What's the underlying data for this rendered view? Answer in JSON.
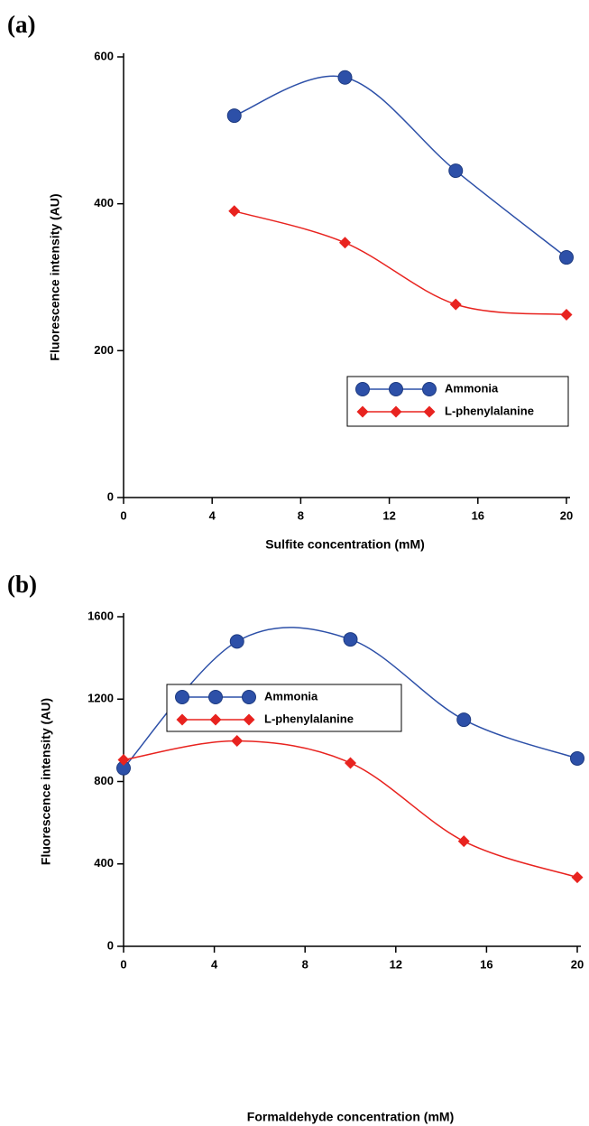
{
  "chart_data": [
    {
      "type": "line",
      "panel_label": "(a)",
      "xlabel": "Sulfite concentration (mM)",
      "ylabel": "Fluorescence intensity (AU)",
      "x": [
        5,
        10,
        15,
        20
      ],
      "series": [
        {
          "name": "Ammonia",
          "color": "#2d50a8",
          "marker": "circle",
          "values": [
            520,
            572,
            445,
            327
          ]
        },
        {
          "name": "L-phenylalanine",
          "color": "#e8231f",
          "marker": "diamond",
          "values": [
            390,
            347,
            263,
            249
          ]
        }
      ],
      "xlim": [
        0,
        20
      ],
      "xticks": [
        0,
        4,
        8,
        12,
        16,
        20
      ],
      "ylim": [
        0,
        600
      ],
      "yticks": [
        0,
        200,
        400,
        600
      ],
      "legend_loc": "lower right"
    },
    {
      "type": "line",
      "panel_label": "(b)",
      "xlabel": "Formaldehyde concentration (mM)",
      "ylabel": "Fluorescence intensity (AU)",
      "x": [
        0,
        5,
        10,
        15,
        20
      ],
      "series": [
        {
          "name": "Ammonia",
          "color": "#2d50a8",
          "marker": "circle",
          "values": [
            865,
            1480,
            1490,
            1100,
            912
          ]
        },
        {
          "name": "L-phenylalanine",
          "color": "#e8231f",
          "marker": "diamond",
          "values": [
            905,
            997,
            890,
            510,
            335
          ]
        }
      ],
      "xlim": [
        0,
        20
      ],
      "xticks": [
        0,
        4,
        8,
        12,
        16,
        20
      ],
      "ylim": [
        0,
        1600
      ],
      "yticks": [
        0,
        400,
        800,
        1200,
        1600
      ],
      "legend_loc": "lower left"
    }
  ]
}
